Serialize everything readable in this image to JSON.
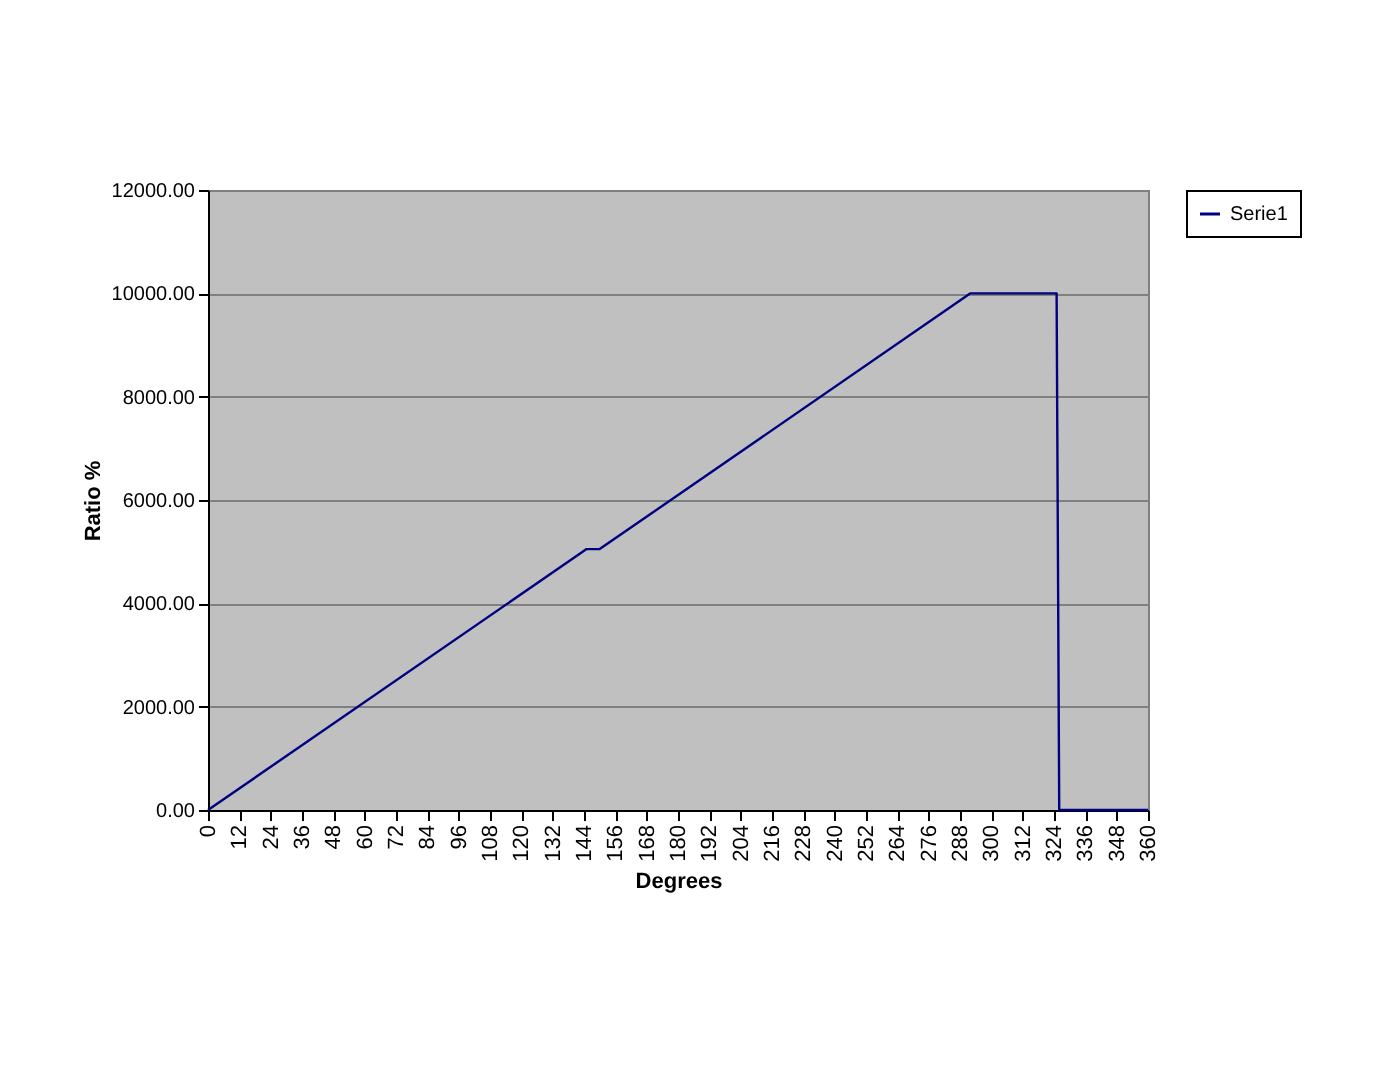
{
  "chart_data": {
    "type": "line",
    "xlabel": "Degrees",
    "ylabel": "Ratio %",
    "series": [
      {
        "name": "Serie1",
        "color": "#000080",
        "x": [
          0,
          145,
          150,
          292,
          325,
          326,
          360
        ],
        "values": [
          0,
          5050,
          5050,
          10000,
          10000,
          0,
          0
        ]
      }
    ],
    "xlim": [
      0,
      360
    ],
    "xticks": [
      0,
      12,
      24,
      36,
      48,
      60,
      72,
      84,
      96,
      108,
      120,
      132,
      144,
      156,
      168,
      180,
      192,
      204,
      216,
      228,
      240,
      252,
      264,
      276,
      288,
      300,
      312,
      324,
      336,
      348,
      360
    ],
    "ylim": [
      0,
      12000
    ],
    "yticks": [
      {
        "value": 0,
        "label": "0.00"
      },
      {
        "value": 2000,
        "label": "2000.00"
      },
      {
        "value": 4000,
        "label": "4000.00"
      },
      {
        "value": 6000,
        "label": "6000.00"
      },
      {
        "value": 8000,
        "label": "8000.00"
      },
      {
        "value": 10000,
        "label": "10000.00"
      },
      {
        "value": 12000,
        "label": "12000.00"
      }
    ],
    "grid": "y",
    "legend": "right",
    "marker": "none",
    "line_style": "solid"
  }
}
